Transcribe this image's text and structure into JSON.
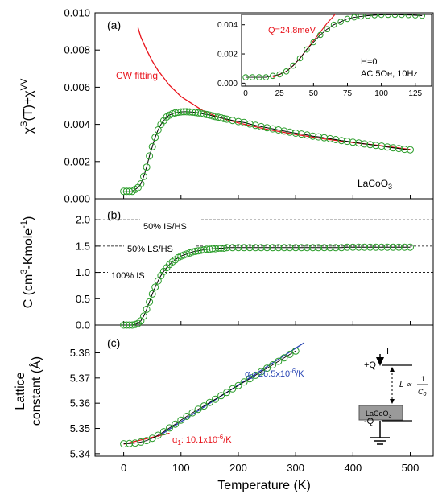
{
  "colors": {
    "data_marker": "#2a9d2a",
    "black_fit": "#000000",
    "red_fit": "#e8141c",
    "blue_fit": "#2845b4",
    "dashed": "#000000",
    "sample_block": "#9a9a9a"
  },
  "figure": {
    "xlabel": "Temperature (K)",
    "x_ticks": [
      "0",
      "100",
      "200",
      "300",
      "400",
      "500"
    ],
    "xlim": [
      -50,
      540
    ]
  },
  "panel_a": {
    "label": "(a)",
    "ylabel": "χ^S(T)+χ^VV",
    "ylabel_main": "χ",
    "ylabel_sup1": "S",
    "ylabel_mid": "(T)+χ",
    "ylabel_sup2": "VV",
    "ylim": [
      0,
      0.01
    ],
    "y_ticks": [
      "0.000",
      "0.002",
      "0.004",
      "0.006",
      "0.008",
      "0.010"
    ],
    "cw_label": "CW fitting",
    "sample_label": "LaCoO3",
    "sample_label_base": "LaCoO",
    "sample_label_sub": "3"
  },
  "inset_a": {
    "q_label": "Q=24.8meV",
    "h_label": "H=0",
    "ac_label": "AC 5Oe, 10Hz",
    "x_ticks": [
      "0",
      "25",
      "50",
      "75",
      "100",
      "125"
    ],
    "y_ticks": [
      "0.000",
      "0.002",
      "0.004"
    ],
    "xlim": [
      -3,
      137
    ],
    "ylim": [
      -0.0002,
      0.0047
    ]
  },
  "panel_b": {
    "label": "(b)",
    "ylabel": "C (cm3-Kmole-1)",
    "ylabel_pre": "C (cm",
    "ylabel_sup1": "3",
    "ylabel_mid": "-Kmole",
    "ylabel_sup2": "-1",
    "ylabel_post": ")",
    "ylim": [
      0,
      2.4
    ],
    "y_ticks": [
      "0.0",
      "0.5",
      "1.0",
      "1.5",
      "2.0"
    ],
    "ref_lines": [
      {
        "value": 2.0,
        "label": "50% IS/HS"
      },
      {
        "value": 1.5,
        "label": "50% LS/HS"
      },
      {
        "value": 1.0,
        "label": "100% IS"
      }
    ]
  },
  "panel_c": {
    "label": "(c)",
    "ylabel_line1": "Lattice",
    "ylabel_line2": "constant (Å)",
    "ylim": [
      5.339,
      5.391
    ],
    "y_ticks": [
      "5.34",
      "5.35",
      "5.36",
      "5.37",
      "5.38"
    ],
    "alpha1_label": "α1: 10.1x10-6/K",
    "alpha1_sym": "α",
    "alpha1_sub": "1",
    "alpha1_text": ": 10.1x10",
    "alpha1_exp": "-6",
    "alpha1_unit": "/K",
    "alpha2_label": "α2: 26.5x10-6/K",
    "alpha2_sym": "α",
    "alpha2_sub": "2",
    "alpha2_text": ": 26.5x10",
    "alpha2_exp": "-6",
    "alpha2_unit": "/K"
  },
  "schematic": {
    "current_label": "I",
    "plus_label": "+Q",
    "minus_label": "-Q",
    "sample_label": "LaCoO3",
    "sample_label_base": "LaCoO",
    "sample_label_sub": "3",
    "relation_left": "L ∝",
    "relation_num": "1",
    "relation_den": "C",
    "relation_den_sub": "0"
  },
  "chart_data": [
    {
      "type": "line",
      "panel": "(a)",
      "title": "",
      "xlabel": "Temperature (K)",
      "ylabel": "χ^S(T)+χ^VV",
      "xlim": [
        -50,
        540
      ],
      "ylim": [
        0,
        0.01
      ],
      "grid": false,
      "series": [
        {
          "name": "",
          "marker": "circle",
          "x": [
            0,
            5,
            10,
            15,
            20,
            25,
            30,
            35,
            40,
            45,
            50,
            55,
            60,
            65,
            70,
            75,
            80,
            85,
            90,
            95,
            100,
            105,
            110,
            115,
            120,
            125,
            130,
            135,
            140,
            145,
            150,
            155,
            160,
            165,
            170,
            175,
            180,
            190,
            200,
            210,
            220,
            230,
            240,
            250,
            260,
            270,
            280,
            290,
            300,
            310,
            320,
            330,
            340,
            350,
            360,
            370,
            380,
            390,
            400,
            410,
            420,
            430,
            440,
            450,
            460,
            470,
            480,
            490,
            500
          ],
          "y": [
            0.0004,
            0.0004,
            0.0004,
            0.0004,
            0.0005,
            0.0006,
            0.0008,
            0.0012,
            0.0017,
            0.0023,
            0.0028,
            0.0033,
            0.0037,
            0.004,
            0.0042,
            0.0044,
            0.0045,
            0.00457,
            0.00462,
            0.00465,
            0.00467,
            0.00468,
            0.00468,
            0.00467,
            0.00466,
            0.00464,
            0.00462,
            0.00459,
            0.00456,
            0.00453,
            0.0045,
            0.00446,
            0.00442,
            0.00438,
            0.00435,
            0.00431,
            0.00428,
            0.00421,
            0.00415,
            0.0041,
            0.00402,
            0.00395,
            0.00388,
            0.00382,
            0.00376,
            0.0037,
            0.00364,
            0.00358,
            0.00353,
            0.00348,
            0.00343,
            0.00337,
            0.00333,
            0.00328,
            0.00323,
            0.00318,
            0.00313,
            0.00309,
            0.00304,
            0.003,
            0.00295,
            0.00291,
            0.00287,
            0.00283,
            0.00278,
            0.00274,
            0.0027,
            0.00266,
            0.00263
          ]
        },
        {
          "name": "CW fitting",
          "marker": "none",
          "x": [
            25,
            30,
            40,
            50,
            60,
            70,
            80,
            90,
            100,
            120,
            140,
            160,
            180,
            200,
            250,
            300,
            350,
            400,
            450,
            500
          ],
          "y": [
            0.0092,
            0.0087,
            0.008,
            0.0074,
            0.0069,
            0.0065,
            0.0061,
            0.0058,
            0.0055,
            0.0051,
            0.0047,
            0.00445,
            0.00425,
            0.00408,
            0.00373,
            0.00346,
            0.00322,
            0.00302,
            0.00285,
            0.00265
          ]
        }
      ]
    },
    {
      "type": "line",
      "panel": "(a) inset",
      "title": "",
      "xlabel": "",
      "ylabel": "",
      "xlim": [
        -3,
        137
      ],
      "ylim": [
        -0.0002,
        0.0047
      ],
      "series": [
        {
          "name": "",
          "marker": "circle",
          "x": [
            0,
            5,
            10,
            15,
            20,
            25,
            30,
            35,
            40,
            45,
            50,
            55,
            60,
            65,
            70,
            75,
            80,
            85,
            90,
            95,
            100,
            105,
            110,
            115,
            120,
            125,
            130
          ],
          "y": [
            0.0004,
            0.0004,
            0.0004,
            0.0004,
            0.0005,
            0.0006,
            0.0008,
            0.0012,
            0.0017,
            0.0023,
            0.0028,
            0.0033,
            0.0037,
            0.004,
            0.0042,
            0.0044,
            0.0045,
            0.00457,
            0.00462,
            0.00465,
            0.00467,
            0.00468,
            0.00468,
            0.00467,
            0.00466,
            0.00464,
            0.00462
          ]
        },
        {
          "name": "Q=24.8meV",
          "marker": "none",
          "x": [
            20,
            25,
            30,
            35,
            40,
            45,
            50,
            55,
            60,
            65,
            70
          ],
          "y": [
            0.0004,
            0.0006,
            0.0008,
            0.0012,
            0.0017,
            0.0023,
            0.0029,
            0.0035,
            0.0041,
            0.0046,
            0.0052
          ]
        }
      ]
    },
    {
      "type": "line",
      "panel": "(b)",
      "title": "",
      "xlabel": "Temperature (K)",
      "ylabel": "C (cm3-Kmole-1)",
      "xlim": [
        -50,
        540
      ],
      "ylim": [
        0,
        2.4
      ],
      "series": [
        {
          "name": "",
          "marker": "circle",
          "x": [
            0,
            5,
            10,
            15,
            20,
            25,
            30,
            35,
            40,
            45,
            50,
            55,
            60,
            65,
            70,
            75,
            80,
            85,
            90,
            95,
            100,
            105,
            110,
            115,
            120,
            125,
            130,
            135,
            140,
            145,
            150,
            155,
            160,
            165,
            170,
            175,
            180,
            190,
            200,
            210,
            220,
            230,
            240,
            250,
            260,
            270,
            280,
            290,
            300,
            310,
            320,
            330,
            340,
            350,
            360,
            370,
            380,
            390,
            400,
            410,
            420,
            430,
            440,
            450,
            460,
            470,
            480,
            490,
            500
          ],
          "y": [
            0.0,
            0.0,
            0.0,
            0.0,
            0.01,
            0.03,
            0.08,
            0.17,
            0.3,
            0.44,
            0.59,
            0.72,
            0.84,
            0.94,
            1.02,
            1.09,
            1.15,
            1.2,
            1.24,
            1.28,
            1.31,
            1.33,
            1.35,
            1.37,
            1.39,
            1.4,
            1.41,
            1.42,
            1.43,
            1.44,
            1.44,
            1.45,
            1.45,
            1.46,
            1.46,
            1.46,
            1.47,
            1.47,
            1.47,
            1.47,
            1.47,
            1.47,
            1.47,
            1.47,
            1.47,
            1.47,
            1.47,
            1.47,
            1.47,
            1.47,
            1.47,
            1.47,
            1.47,
            1.47,
            1.47,
            1.47,
            1.47,
            1.48,
            1.48,
            1.48,
            1.48,
            1.48,
            1.48,
            1.48,
            1.48,
            1.48,
            1.48,
            1.48,
            1.48
          ]
        }
      ]
    },
    {
      "type": "line",
      "panel": "(c)",
      "title": "",
      "xlabel": "Temperature (K)",
      "ylabel": "Lattice constant (Å)",
      "xlim": [
        -50,
        540
      ],
      "ylim": [
        5.339,
        5.391
      ],
      "series": [
        {
          "name": "",
          "marker": "circle",
          "x": [
            0,
            10,
            20,
            30,
            40,
            50,
            60,
            70,
            80,
            90,
            100,
            110,
            120,
            130,
            140,
            150,
            160,
            170,
            180,
            190,
            200,
            210,
            220,
            230,
            240,
            250,
            260,
            270,
            280,
            290,
            300
          ],
          "y": [
            5.3439,
            5.344,
            5.3442,
            5.3446,
            5.3452,
            5.3461,
            5.3473,
            5.3487,
            5.3502,
            5.3517,
            5.3533,
            5.3548,
            5.3562,
            5.3576,
            5.3589,
            5.3603,
            5.3616,
            5.363,
            5.3643,
            5.3657,
            5.367,
            5.3684,
            5.3697,
            5.3711,
            5.3725,
            5.3739,
            5.3752,
            5.3766,
            5.378,
            5.3794,
            5.3807
          ]
        },
        {
          "name": "α1: 10.1x10-6/K",
          "marker": "none",
          "x": [
            0,
            80
          ],
          "y": [
            5.3438,
            5.3481
          ]
        },
        {
          "name": "α2: 26.5x10-6/K",
          "marker": "none",
          "x": [
            60,
            315
          ],
          "y": [
            5.3468,
            5.384
          ]
        }
      ]
    }
  ]
}
